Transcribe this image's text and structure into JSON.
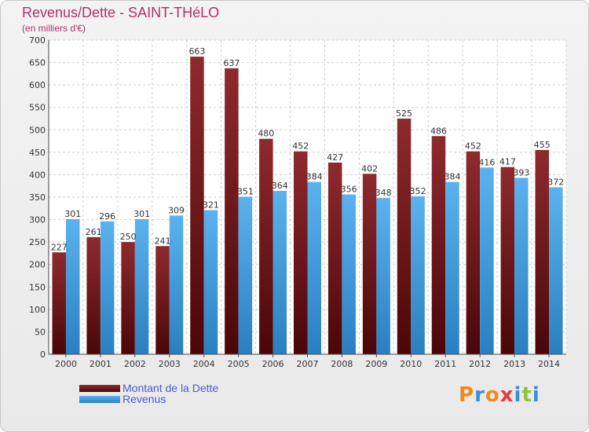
{
  "header": {
    "title": "Revenus/Dette - SAINT-THéLO",
    "subtitle": "(en milliers d'€)"
  },
  "legend": {
    "items": [
      {
        "label": "Montant de la Dette",
        "color": "#7a1a1e"
      },
      {
        "label": "Revenus",
        "color": "#4aa3e0"
      }
    ]
  },
  "logo": {
    "text": "Proxiti",
    "letters": [
      "P",
      "r",
      "o",
      "x",
      "i",
      "t",
      "i"
    ]
  },
  "chart_data": {
    "type": "bar",
    "title": "Revenus/Dette - SAINT-THéLO",
    "ylabel": "(en milliers d'€)",
    "xlabel": "",
    "ylim": [
      0,
      700
    ],
    "yticks": [
      0,
      50,
      100,
      150,
      200,
      250,
      300,
      350,
      400,
      450,
      500,
      550,
      600,
      650,
      700
    ],
    "grid": true,
    "categories": [
      "2000",
      "2001",
      "2002",
      "2003",
      "2004",
      "2005",
      "2006",
      "2007",
      "2008",
      "2009",
      "2010",
      "2011",
      "2012",
      "2013",
      "2014"
    ],
    "series": [
      {
        "name": "Montant de la Dette",
        "color": "#7a1a1e",
        "values": [
          227,
          261,
          250,
          241,
          663,
          637,
          480,
          452,
          427,
          402,
          525,
          486,
          452,
          417,
          455
        ],
        "labels": [
          "227",
          "261",
          "250",
          "241",
          "663",
          "637",
          "480",
          "452",
          "427",
          "402",
          "525",
          "486",
          "452",
          "417",
          "455"
        ]
      },
      {
        "name": "Revenus",
        "color": "#4aa3e0",
        "values": [
          301,
          296,
          301,
          309,
          321,
          351,
          364,
          384,
          356,
          348,
          352,
          384,
          416,
          393,
          372
        ],
        "labels": [
          "301",
          "296",
          "301",
          "309",
          "321",
          "351",
          "364",
          "384",
          "356",
          "348",
          "352",
          "384",
          "416",
          "393",
          "372"
        ]
      }
    ]
  }
}
